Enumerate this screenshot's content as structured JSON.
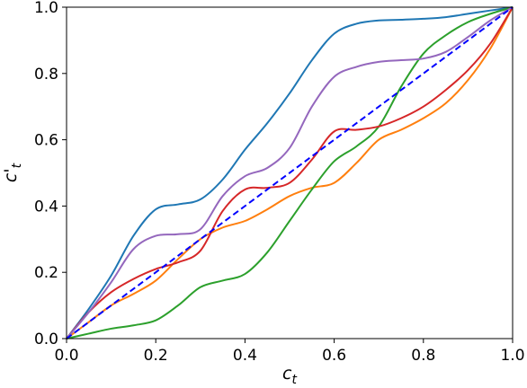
{
  "chart_data": {
    "type": "line",
    "xlabel": "c_t",
    "ylabel": "c'_t",
    "xlim": [
      0.0,
      1.0
    ],
    "ylim": [
      0.0,
      1.0
    ],
    "xticks": [
      0.0,
      0.2,
      0.4,
      0.6,
      0.8,
      1.0
    ],
    "yticks": [
      0.0,
      0.2,
      0.4,
      0.6,
      0.8,
      1.0
    ],
    "xtick_labels": [
      "0.0",
      "0.2",
      "0.4",
      "0.6",
      "0.8",
      "1.0"
    ],
    "ytick_labels": [
      "0.0",
      "0.2",
      "0.4",
      "0.6",
      "0.8",
      "1.0"
    ],
    "grid": false,
    "legend": "none",
    "series": [
      {
        "color": "#1f77b4",
        "x": [
          0.0,
          0.05,
          0.1,
          0.15,
          0.2,
          0.25,
          0.3,
          0.35,
          0.4,
          0.45,
          0.5,
          0.55,
          0.6,
          0.65,
          0.7,
          0.75,
          0.8,
          0.85,
          0.9,
          0.95,
          1.0
        ],
        "y": [
          0.0,
          0.09,
          0.19,
          0.31,
          0.39,
          0.405,
          0.42,
          0.48,
          0.57,
          0.65,
          0.74,
          0.84,
          0.92,
          0.95,
          0.96,
          0.962,
          0.965,
          0.97,
          0.98,
          0.99,
          1.0
        ]
      },
      {
        "color": "#ff7f0e",
        "x": [
          0.0,
          0.05,
          0.1,
          0.15,
          0.2,
          0.25,
          0.3,
          0.35,
          0.4,
          0.45,
          0.5,
          0.55,
          0.6,
          0.65,
          0.7,
          0.75,
          0.8,
          0.85,
          0.9,
          0.95,
          1.0
        ],
        "y": [
          0.0,
          0.05,
          0.1,
          0.135,
          0.175,
          0.24,
          0.3,
          0.335,
          0.355,
          0.39,
          0.43,
          0.455,
          0.47,
          0.53,
          0.6,
          0.63,
          0.665,
          0.71,
          0.78,
          0.875,
          1.0
        ]
      },
      {
        "color": "#2ca02c",
        "x": [
          0.0,
          0.05,
          0.1,
          0.15,
          0.2,
          0.25,
          0.3,
          0.35,
          0.4,
          0.45,
          0.5,
          0.55,
          0.6,
          0.65,
          0.7,
          0.75,
          0.8,
          0.85,
          0.9,
          0.95,
          1.0
        ],
        "y": [
          0.0,
          0.015,
          0.03,
          0.04,
          0.055,
          0.1,
          0.155,
          0.175,
          0.195,
          0.26,
          0.355,
          0.45,
          0.535,
          0.58,
          0.64,
          0.76,
          0.86,
          0.915,
          0.955,
          0.98,
          1.0
        ]
      },
      {
        "color": "#d62728",
        "x": [
          0.0,
          0.05,
          0.1,
          0.15,
          0.2,
          0.25,
          0.3,
          0.35,
          0.4,
          0.45,
          0.5,
          0.55,
          0.6,
          0.65,
          0.7,
          0.75,
          0.8,
          0.85,
          0.9,
          0.95,
          1.0
        ],
        "y": [
          0.0,
          0.08,
          0.14,
          0.18,
          0.21,
          0.23,
          0.265,
          0.385,
          0.45,
          0.455,
          0.47,
          0.54,
          0.625,
          0.63,
          0.64,
          0.665,
          0.7,
          0.75,
          0.81,
          0.89,
          1.0
        ]
      },
      {
        "color": "#9467bd",
        "x": [
          0.0,
          0.05,
          0.1,
          0.15,
          0.2,
          0.25,
          0.3,
          0.35,
          0.4,
          0.45,
          0.5,
          0.55,
          0.6,
          0.65,
          0.7,
          0.75,
          0.8,
          0.85,
          0.9,
          0.95,
          1.0
        ],
        "y": [
          0.0,
          0.08,
          0.17,
          0.27,
          0.31,
          0.315,
          0.33,
          0.43,
          0.49,
          0.515,
          0.575,
          0.7,
          0.79,
          0.82,
          0.835,
          0.84,
          0.845,
          0.865,
          0.91,
          0.96,
          1.0
        ]
      },
      {
        "color": "#0000ff",
        "dashed": true,
        "x": [
          0.0,
          1.0
        ],
        "y": [
          0.0,
          1.0
        ]
      }
    ]
  }
}
